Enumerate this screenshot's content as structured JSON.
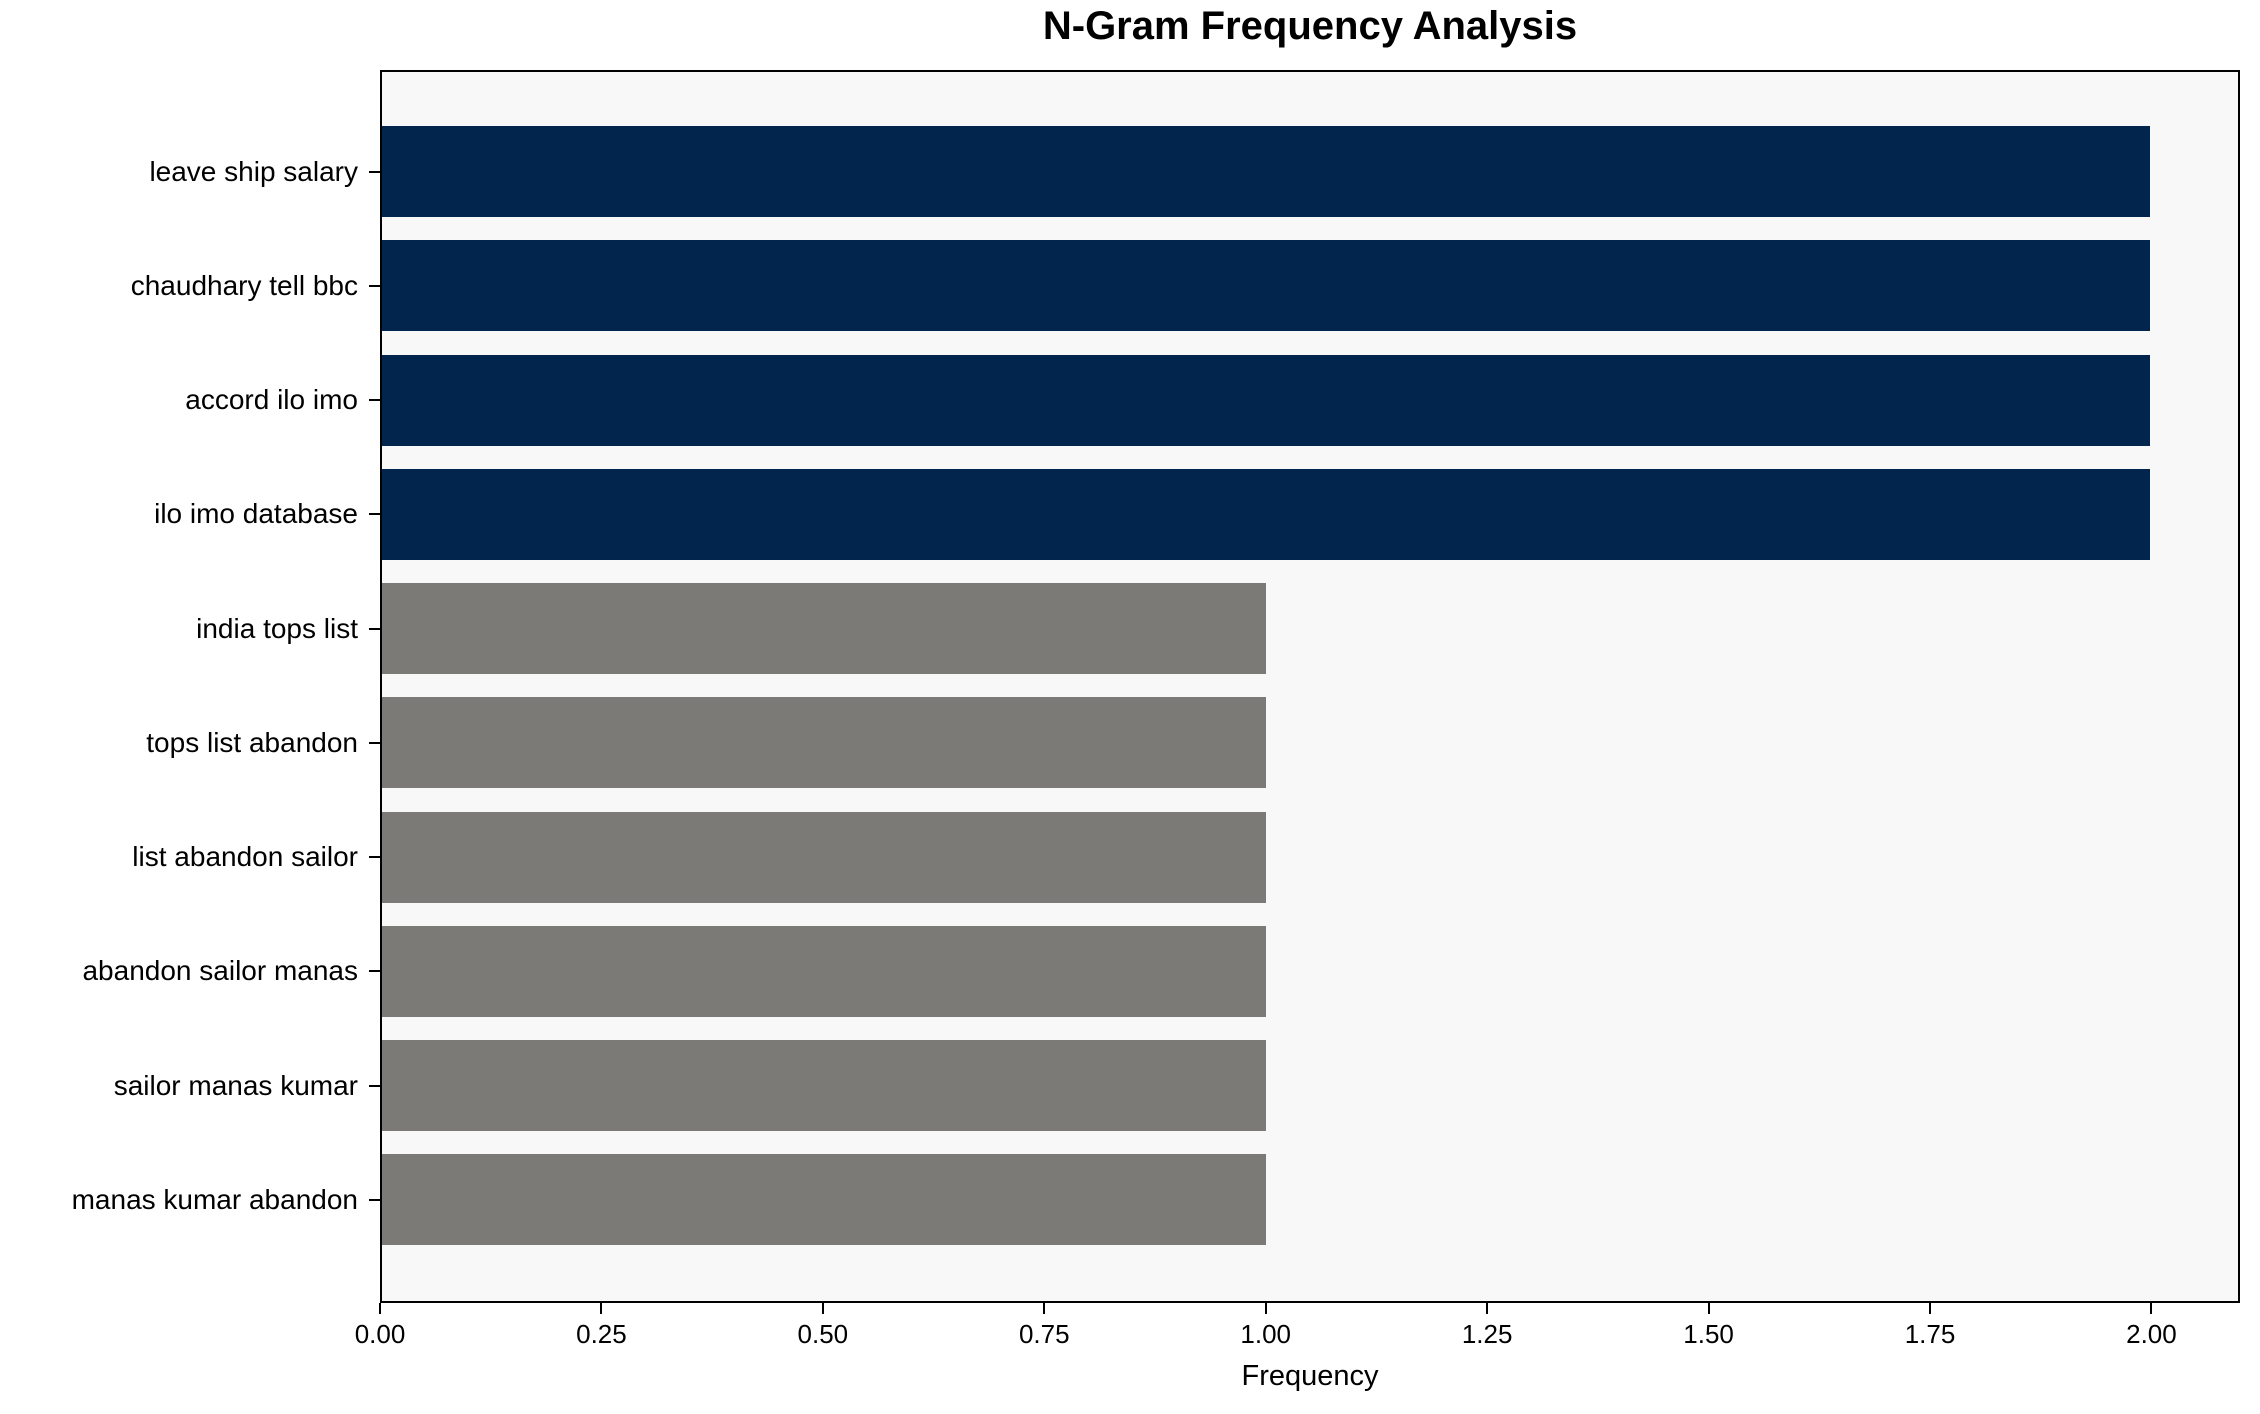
{
  "title": "N-Gram Frequency Analysis",
  "chart_data": {
    "type": "bar",
    "orientation": "horizontal",
    "title": "N-Gram Frequency Analysis",
    "xlabel": "Frequency",
    "ylabel": "",
    "categories": [
      "leave ship salary",
      "chaudhary tell bbc",
      "accord ilo imo",
      "ilo imo database",
      "india tops list",
      "tops list abandon",
      "list abandon sailor",
      "abandon sailor manas",
      "sailor manas kumar",
      "manas kumar abandon"
    ],
    "values": [
      2,
      2,
      2,
      2,
      1,
      1,
      1,
      1,
      1,
      1
    ],
    "bar_colors": [
      "#02254d",
      "#02254d",
      "#02254d",
      "#02254d",
      "#7b7a76",
      "#7b7a76",
      "#7b7a76",
      "#7b7a76",
      "#7b7a76",
      "#7b7a76"
    ],
    "xlim": [
      0,
      2.1
    ],
    "xticks": [
      "0.00",
      "0.25",
      "0.50",
      "0.75",
      "1.00",
      "1.25",
      "1.50",
      "1.75",
      "2.00"
    ],
    "xtick_values": [
      0,
      0.25,
      0.5,
      0.75,
      1.0,
      1.25,
      1.5,
      1.75,
      2.0
    ],
    "grid": false,
    "legend": null,
    "plot_background": "#f8f8f8",
    "figure_background": "#ffffff",
    "accent_color_high": "#02254d",
    "accent_color_low": "#7b7a76"
  }
}
